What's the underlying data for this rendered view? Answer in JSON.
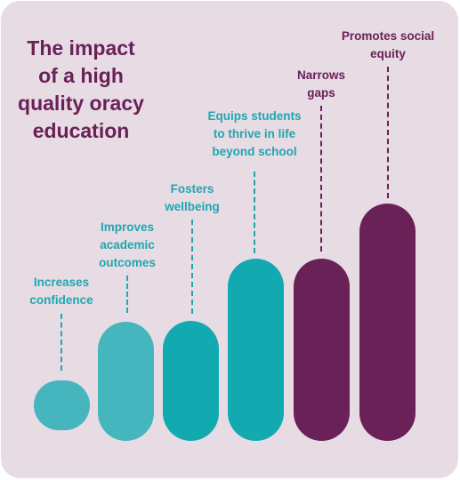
{
  "title": {
    "lines": [
      "The impact",
      "of a high",
      "quality oracy",
      "education"
    ]
  },
  "colors": {
    "background": "#e7dbe4",
    "title": "#6a2158",
    "teal_light": "#45b6bd",
    "teal": "#12aab0",
    "plum": "#6a2158",
    "teal_text": "#1fa7b0"
  },
  "steps": [
    {
      "lines": [
        "Increases",
        "confidence"
      ]
    },
    {
      "lines": [
        "Improves",
        "academic",
        "outcomes"
      ]
    },
    {
      "lines": [
        "Fosters",
        "wellbeing"
      ]
    },
    {
      "lines": [
        "Equips students",
        "to thrive in life",
        "beyond school"
      ]
    },
    {
      "lines": [
        "Narrows",
        "gaps"
      ]
    },
    {
      "lines": [
        "Promotes social",
        "equity"
      ]
    }
  ]
}
